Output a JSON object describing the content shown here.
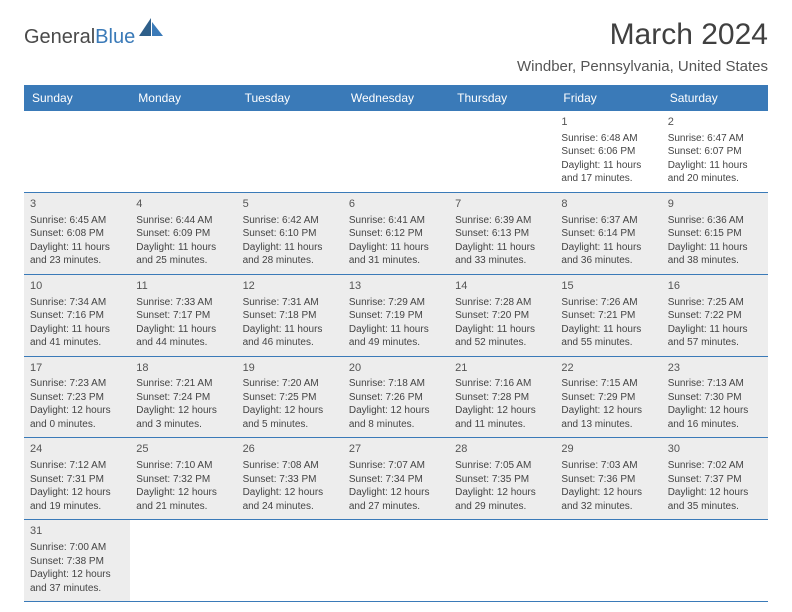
{
  "logo": {
    "part1": "General",
    "part2": "Blue"
  },
  "title": "March 2024",
  "location": "Windber, Pennsylvania, United States",
  "colors": {
    "header_bg": "#3a7ab8",
    "header_text": "#ffffff",
    "border": "#3a7ab8",
    "shaded_bg": "#ededed",
    "text": "#444444"
  },
  "day_names": [
    "Sunday",
    "Monday",
    "Tuesday",
    "Wednesday",
    "Thursday",
    "Friday",
    "Saturday"
  ],
  "weeks": [
    [
      null,
      null,
      null,
      null,
      null,
      {
        "n": "1",
        "sr": "Sunrise: 6:48 AM",
        "ss": "Sunset: 6:06 PM",
        "dl": "Daylight: 11 hours and 17 minutes."
      },
      {
        "n": "2",
        "sr": "Sunrise: 6:47 AM",
        "ss": "Sunset: 6:07 PM",
        "dl": "Daylight: 11 hours and 20 minutes."
      }
    ],
    [
      {
        "n": "3",
        "sr": "Sunrise: 6:45 AM",
        "ss": "Sunset: 6:08 PM",
        "dl": "Daylight: 11 hours and 23 minutes.",
        "sh": true
      },
      {
        "n": "4",
        "sr": "Sunrise: 6:44 AM",
        "ss": "Sunset: 6:09 PM",
        "dl": "Daylight: 11 hours and 25 minutes.",
        "sh": true
      },
      {
        "n": "5",
        "sr": "Sunrise: 6:42 AM",
        "ss": "Sunset: 6:10 PM",
        "dl": "Daylight: 11 hours and 28 minutes.",
        "sh": true
      },
      {
        "n": "6",
        "sr": "Sunrise: 6:41 AM",
        "ss": "Sunset: 6:12 PM",
        "dl": "Daylight: 11 hours and 31 minutes.",
        "sh": true
      },
      {
        "n": "7",
        "sr": "Sunrise: 6:39 AM",
        "ss": "Sunset: 6:13 PM",
        "dl": "Daylight: 11 hours and 33 minutes.",
        "sh": true
      },
      {
        "n": "8",
        "sr": "Sunrise: 6:37 AM",
        "ss": "Sunset: 6:14 PM",
        "dl": "Daylight: 11 hours and 36 minutes.",
        "sh": true
      },
      {
        "n": "9",
        "sr": "Sunrise: 6:36 AM",
        "ss": "Sunset: 6:15 PM",
        "dl": "Daylight: 11 hours and 38 minutes.",
        "sh": true
      }
    ],
    [
      {
        "n": "10",
        "sr": "Sunrise: 7:34 AM",
        "ss": "Sunset: 7:16 PM",
        "dl": "Daylight: 11 hours and 41 minutes.",
        "sh": true
      },
      {
        "n": "11",
        "sr": "Sunrise: 7:33 AM",
        "ss": "Sunset: 7:17 PM",
        "dl": "Daylight: 11 hours and 44 minutes.",
        "sh": true
      },
      {
        "n": "12",
        "sr": "Sunrise: 7:31 AM",
        "ss": "Sunset: 7:18 PM",
        "dl": "Daylight: 11 hours and 46 minutes.",
        "sh": true
      },
      {
        "n": "13",
        "sr": "Sunrise: 7:29 AM",
        "ss": "Sunset: 7:19 PM",
        "dl": "Daylight: 11 hours and 49 minutes.",
        "sh": true
      },
      {
        "n": "14",
        "sr": "Sunrise: 7:28 AM",
        "ss": "Sunset: 7:20 PM",
        "dl": "Daylight: 11 hours and 52 minutes.",
        "sh": true
      },
      {
        "n": "15",
        "sr": "Sunrise: 7:26 AM",
        "ss": "Sunset: 7:21 PM",
        "dl": "Daylight: 11 hours and 55 minutes.",
        "sh": true
      },
      {
        "n": "16",
        "sr": "Sunrise: 7:25 AM",
        "ss": "Sunset: 7:22 PM",
        "dl": "Daylight: 11 hours and 57 minutes.",
        "sh": true
      }
    ],
    [
      {
        "n": "17",
        "sr": "Sunrise: 7:23 AM",
        "ss": "Sunset: 7:23 PM",
        "dl": "Daylight: 12 hours and 0 minutes.",
        "sh": true
      },
      {
        "n": "18",
        "sr": "Sunrise: 7:21 AM",
        "ss": "Sunset: 7:24 PM",
        "dl": "Daylight: 12 hours and 3 minutes.",
        "sh": true
      },
      {
        "n": "19",
        "sr": "Sunrise: 7:20 AM",
        "ss": "Sunset: 7:25 PM",
        "dl": "Daylight: 12 hours and 5 minutes.",
        "sh": true
      },
      {
        "n": "20",
        "sr": "Sunrise: 7:18 AM",
        "ss": "Sunset: 7:26 PM",
        "dl": "Daylight: 12 hours and 8 minutes.",
        "sh": true
      },
      {
        "n": "21",
        "sr": "Sunrise: 7:16 AM",
        "ss": "Sunset: 7:28 PM",
        "dl": "Daylight: 12 hours and 11 minutes.",
        "sh": true
      },
      {
        "n": "22",
        "sr": "Sunrise: 7:15 AM",
        "ss": "Sunset: 7:29 PM",
        "dl": "Daylight: 12 hours and 13 minutes.",
        "sh": true
      },
      {
        "n": "23",
        "sr": "Sunrise: 7:13 AM",
        "ss": "Sunset: 7:30 PM",
        "dl": "Daylight: 12 hours and 16 minutes.",
        "sh": true
      }
    ],
    [
      {
        "n": "24",
        "sr": "Sunrise: 7:12 AM",
        "ss": "Sunset: 7:31 PM",
        "dl": "Daylight: 12 hours and 19 minutes.",
        "sh": true
      },
      {
        "n": "25",
        "sr": "Sunrise: 7:10 AM",
        "ss": "Sunset: 7:32 PM",
        "dl": "Daylight: 12 hours and 21 minutes.",
        "sh": true
      },
      {
        "n": "26",
        "sr": "Sunrise: 7:08 AM",
        "ss": "Sunset: 7:33 PM",
        "dl": "Daylight: 12 hours and 24 minutes.",
        "sh": true
      },
      {
        "n": "27",
        "sr": "Sunrise: 7:07 AM",
        "ss": "Sunset: 7:34 PM",
        "dl": "Daylight: 12 hours and 27 minutes.",
        "sh": true
      },
      {
        "n": "28",
        "sr": "Sunrise: 7:05 AM",
        "ss": "Sunset: 7:35 PM",
        "dl": "Daylight: 12 hours and 29 minutes.",
        "sh": true
      },
      {
        "n": "29",
        "sr": "Sunrise: 7:03 AM",
        "ss": "Sunset: 7:36 PM",
        "dl": "Daylight: 12 hours and 32 minutes.",
        "sh": true
      },
      {
        "n": "30",
        "sr": "Sunrise: 7:02 AM",
        "ss": "Sunset: 7:37 PM",
        "dl": "Daylight: 12 hours and 35 minutes.",
        "sh": true
      }
    ],
    [
      {
        "n": "31",
        "sr": "Sunrise: 7:00 AM",
        "ss": "Sunset: 7:38 PM",
        "dl": "Daylight: 12 hours and 37 minutes.",
        "sh": true
      },
      null,
      null,
      null,
      null,
      null,
      null
    ]
  ]
}
